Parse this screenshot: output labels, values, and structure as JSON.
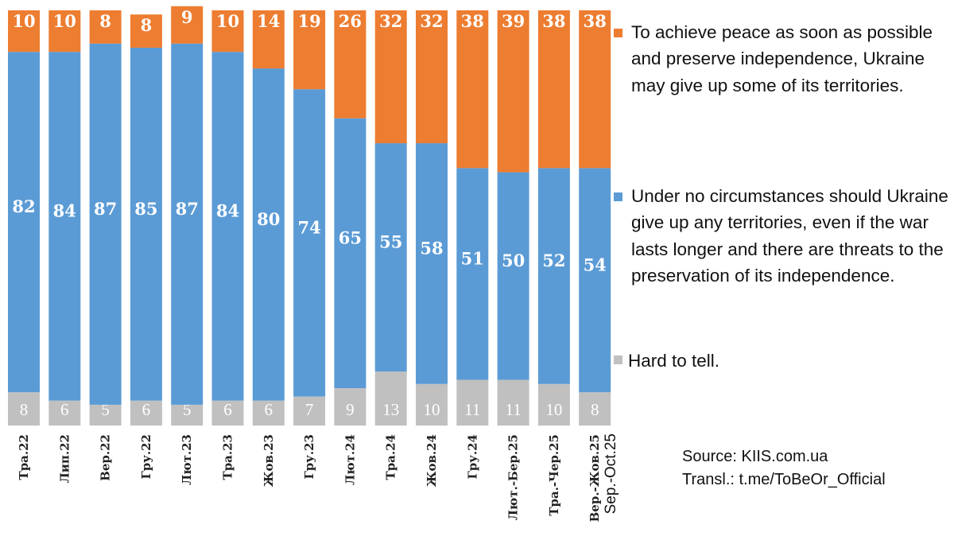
{
  "chart_data": {
    "type": "bar",
    "stacked": true,
    "categories": [
      "Тра.22",
      "Лип.22",
      "Вер.22",
      "Гру.22",
      "Лют.23",
      "Тра.23",
      "Жов.23",
      "Гру.23",
      "Лют.24",
      "Тра.24",
      "Жов.24",
      "Гру.24",
      "Лют.-Бер.25",
      "Тра.-Чер.25",
      "Вер.-Жов.25"
    ],
    "extra_last_label": "Sep.-Oct.25",
    "series": [
      {
        "name": "Hard to tell.",
        "color": "#c0c0c0",
        "values": [
          8,
          6,
          5,
          6,
          5,
          6,
          6,
          7,
          9,
          13,
          10,
          11,
          11,
          10,
          8
        ]
      },
      {
        "name": "Under no circumstances should Ukraine give up any territories, even if the war lasts longer and there are threats to the preservation of its independence.",
        "color": "#5b9bd5",
        "values": [
          82,
          84,
          87,
          85,
          87,
          84,
          80,
          74,
          65,
          55,
          58,
          51,
          50,
          52,
          54
        ]
      },
      {
        "name": "To achieve peace as soon as possible and preserve independence, Ukraine may give up some of its territories.",
        "color": "#ed7d31",
        "values": [
          10,
          10,
          8,
          8,
          9,
          10,
          14,
          19,
          26,
          32,
          32,
          38,
          39,
          38,
          38
        ]
      }
    ],
    "ylim": [
      0,
      100
    ],
    "unit": "%",
    "legend_position": "right"
  },
  "legend": {
    "orange": "To achieve peace as soon as possible and preserve independence, Ukraine may give up some of its territories.",
    "blue": "Under no circumstances should Ukraine give up any territories, even if the war lasts longer and there are threats to the preservation of its independence.",
    "grey": "Hard to tell."
  },
  "source": {
    "line1": "Source: KIIS.com.ua",
    "line2": "Transl.: t.me/ToBeOr_Official"
  }
}
